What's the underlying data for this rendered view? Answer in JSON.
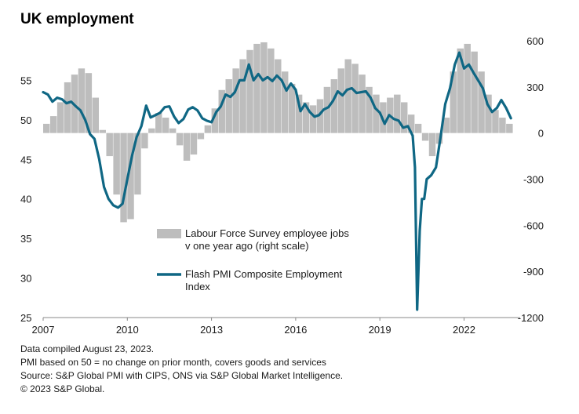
{
  "chart_data": {
    "type": "bar+line",
    "title": "UK employment",
    "x_axis": {
      "start": 2007.0,
      "end": 2024.0,
      "ticks": [
        "2007",
        "2010",
        "2013",
        "2016",
        "2019",
        "2022"
      ],
      "tick_values": [
        2007,
        2010,
        2013,
        2016,
        2019,
        2022
      ]
    },
    "y_left": {
      "min": 25,
      "max": 60,
      "ticks": [
        "25",
        "30",
        "35",
        "40",
        "45",
        "50",
        "55"
      ],
      "tick_values": [
        25,
        30,
        35,
        40,
        45,
        50,
        55
      ]
    },
    "y_right": {
      "min": -1200,
      "max": 600,
      "ticks": [
        "-1200",
        "-900",
        "-600",
        "-300",
        "0",
        "300",
        "600"
      ],
      "tick_values": [
        -1200,
        -900,
        -600,
        -300,
        0,
        300,
        600
      ]
    },
    "series": [
      {
        "name": "Labour Force Survey employee jobs v one year ago (right scale)",
        "name_lines": [
          "Labour Force Survey employee jobs",
          "v one year ago (right scale)"
        ],
        "kind": "bar",
        "axis": "right",
        "color": "#bdbdbd",
        "points": [
          [
            2007.0,
            60
          ],
          [
            2007.25,
            110
          ],
          [
            2007.5,
            200
          ],
          [
            2007.75,
            330
          ],
          [
            2008.0,
            380
          ],
          [
            2008.25,
            420
          ],
          [
            2008.5,
            390
          ],
          [
            2008.75,
            230
          ],
          [
            2009.0,
            20
          ],
          [
            2009.25,
            -150
          ],
          [
            2009.5,
            -400
          ],
          [
            2009.75,
            -580
          ],
          [
            2010.0,
            -560
          ],
          [
            2010.25,
            -400
          ],
          [
            2010.5,
            -100
          ],
          [
            2010.75,
            30
          ],
          [
            2011.0,
            130
          ],
          [
            2011.25,
            100
          ],
          [
            2011.5,
            30
          ],
          [
            2011.75,
            -80
          ],
          [
            2012.0,
            -180
          ],
          [
            2012.25,
            -140
          ],
          [
            2012.5,
            -40
          ],
          [
            2012.75,
            50
          ],
          [
            2013.0,
            160
          ],
          [
            2013.25,
            280
          ],
          [
            2013.5,
            350
          ],
          [
            2013.75,
            420
          ],
          [
            2014.0,
            480
          ],
          [
            2014.25,
            540
          ],
          [
            2014.5,
            580
          ],
          [
            2014.75,
            590
          ],
          [
            2015.0,
            550
          ],
          [
            2015.25,
            480
          ],
          [
            2015.5,
            400
          ],
          [
            2015.75,
            320
          ],
          [
            2016.0,
            250
          ],
          [
            2016.25,
            200
          ],
          [
            2016.5,
            180
          ],
          [
            2016.75,
            220
          ],
          [
            2017.0,
            300
          ],
          [
            2017.25,
            350
          ],
          [
            2017.5,
            420
          ],
          [
            2017.75,
            480
          ],
          [
            2018.0,
            450
          ],
          [
            2018.25,
            380
          ],
          [
            2018.5,
            300
          ],
          [
            2018.75,
            250
          ],
          [
            2019.0,
            200
          ],
          [
            2019.25,
            230
          ],
          [
            2019.5,
            250
          ],
          [
            2019.75,
            200
          ],
          [
            2020.0,
            120
          ],
          [
            2020.25,
            60
          ],
          [
            2020.5,
            -50
          ],
          [
            2020.75,
            -150
          ],
          [
            2021.0,
            -70
          ],
          [
            2021.25,
            100
          ],
          [
            2021.5,
            400
          ],
          [
            2021.75,
            550
          ],
          [
            2022.0,
            580
          ],
          [
            2022.25,
            530
          ],
          [
            2022.5,
            400
          ],
          [
            2022.75,
            250
          ],
          [
            2023.0,
            150
          ],
          [
            2023.25,
            100
          ],
          [
            2023.5,
            60
          ]
        ]
      },
      {
        "name": "Flash PMI Composite Employment Index",
        "name_lines": [
          "Flash PMI Composite Employment",
          "Index"
        ],
        "kind": "line",
        "axis": "left",
        "color": "#0f6784",
        "points": [
          [
            2007.0,
            53.5
          ],
          [
            2007.17,
            53.2
          ],
          [
            2007.33,
            52.3
          ],
          [
            2007.5,
            52.8
          ],
          [
            2007.67,
            52.6
          ],
          [
            2007.83,
            52.1
          ],
          [
            2008.0,
            52.3
          ],
          [
            2008.17,
            51.7
          ],
          [
            2008.33,
            51.2
          ],
          [
            2008.5,
            50.0
          ],
          [
            2008.67,
            48.2
          ],
          [
            2008.83,
            47.6
          ],
          [
            2009.0,
            45.0
          ],
          [
            2009.17,
            41.5
          ],
          [
            2009.33,
            40.0
          ],
          [
            2009.5,
            39.2
          ],
          [
            2009.67,
            38.9
          ],
          [
            2009.83,
            39.4
          ],
          [
            2010.0,
            42.5
          ],
          [
            2010.17,
            45.5
          ],
          [
            2010.33,
            47.8
          ],
          [
            2010.5,
            49.2
          ],
          [
            2010.67,
            51.8
          ],
          [
            2010.83,
            50.3
          ],
          [
            2011.0,
            50.6
          ],
          [
            2011.17,
            50.9
          ],
          [
            2011.33,
            51.6
          ],
          [
            2011.5,
            51.7
          ],
          [
            2011.67,
            50.4
          ],
          [
            2011.83,
            49.6
          ],
          [
            2012.0,
            50.1
          ],
          [
            2012.17,
            51.3
          ],
          [
            2012.33,
            51.6
          ],
          [
            2012.5,
            51.2
          ],
          [
            2012.67,
            50.2
          ],
          [
            2012.83,
            49.9
          ],
          [
            2013.0,
            49.7
          ],
          [
            2013.17,
            51.0
          ],
          [
            2013.33,
            51.7
          ],
          [
            2013.5,
            53.2
          ],
          [
            2013.67,
            52.9
          ],
          [
            2013.83,
            53.5
          ],
          [
            2014.0,
            55.0
          ],
          [
            2014.17,
            55.0
          ],
          [
            2014.33,
            57.0
          ],
          [
            2014.5,
            55.0
          ],
          [
            2014.67,
            55.8
          ],
          [
            2014.83,
            55.0
          ],
          [
            2015.0,
            55.4
          ],
          [
            2015.17,
            54.9
          ],
          [
            2015.33,
            55.6
          ],
          [
            2015.5,
            55.0
          ],
          [
            2015.67,
            53.7
          ],
          [
            2015.83,
            54.6
          ],
          [
            2016.0,
            53.8
          ],
          [
            2016.17,
            51.1
          ],
          [
            2016.33,
            52.0
          ],
          [
            2016.5,
            51.0
          ],
          [
            2016.67,
            50.4
          ],
          [
            2016.83,
            50.6
          ],
          [
            2017.0,
            51.3
          ],
          [
            2017.17,
            51.6
          ],
          [
            2017.33,
            52.4
          ],
          [
            2017.5,
            53.6
          ],
          [
            2017.67,
            53.1
          ],
          [
            2017.83,
            53.8
          ],
          [
            2018.0,
            54.0
          ],
          [
            2018.17,
            53.4
          ],
          [
            2018.33,
            53.5
          ],
          [
            2018.5,
            53.6
          ],
          [
            2018.67,
            52.8
          ],
          [
            2018.83,
            51.5
          ],
          [
            2019.0,
            50.9
          ],
          [
            2019.17,
            49.5
          ],
          [
            2019.33,
            50.6
          ],
          [
            2019.5,
            50.1
          ],
          [
            2019.67,
            49.9
          ],
          [
            2019.83,
            49.0
          ],
          [
            2020.0,
            49.2
          ],
          [
            2020.17,
            48.0
          ],
          [
            2020.25,
            44.0
          ],
          [
            2020.33,
            26.0
          ],
          [
            2020.42,
            36.0
          ],
          [
            2020.5,
            40.0
          ],
          [
            2020.58,
            40.0
          ],
          [
            2020.67,
            42.5
          ],
          [
            2020.83,
            43.0
          ],
          [
            2021.0,
            44.0
          ],
          [
            2021.17,
            48.0
          ],
          [
            2021.33,
            52.0
          ],
          [
            2021.5,
            54.0
          ],
          [
            2021.67,
            57.0
          ],
          [
            2021.83,
            58.5
          ],
          [
            2022.0,
            56.5
          ],
          [
            2022.17,
            57.0
          ],
          [
            2022.33,
            56.0
          ],
          [
            2022.5,
            55.0
          ],
          [
            2022.67,
            54.0
          ],
          [
            2022.83,
            52.0
          ],
          [
            2023.0,
            51.0
          ],
          [
            2023.17,
            51.5
          ],
          [
            2023.33,
            52.5
          ],
          [
            2023.5,
            51.5
          ],
          [
            2023.67,
            50.2
          ]
        ]
      }
    ],
    "legend_placement": "center-bottom",
    "grid": false
  },
  "notes": [
    "Data compiled August 23, 2023.",
    "PMI based on 50 = no change on prior month, covers goods and services",
    "Source: S&P Global PMI with CIPS, ONS via S&P Global Market Intelligence.",
    "© 2023 S&P Global."
  ]
}
